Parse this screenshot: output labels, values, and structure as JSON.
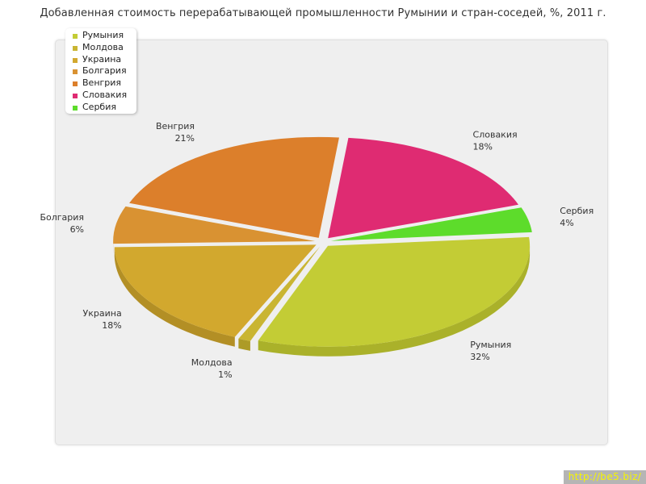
{
  "watermark": "http://be5.biz/",
  "chart_data": {
    "type": "pie",
    "title": "Добавленная стоимость перерабатывающей промышленности Румынии и стран-соседей, %, 2011 г.",
    "legend_position": "top-left",
    "slices": [
      {
        "name": "Румыния",
        "value": 32,
        "value_label": "32%",
        "color": "#c3cc35",
        "side": "#aab12a"
      },
      {
        "name": "Молдова",
        "value": 1,
        "value_label": "1%",
        "color": "#c9b532",
        "side": "#ad9b27"
      },
      {
        "name": "Украина",
        "value": 18,
        "value_label": "18%",
        "color": "#d2a82e",
        "side": "#b38f25"
      },
      {
        "name": "Болгария",
        "value": 6,
        "value_label": "6%",
        "color": "#d99232",
        "side": "#b97a28"
      },
      {
        "name": "Венгрия",
        "value": 21,
        "value_label": "21%",
        "color": "#dc7f2b",
        "side": "#bd6a22"
      },
      {
        "name": "Словакия",
        "value": 18,
        "value_label": "18%",
        "color": "#df2b72",
        "side": "#bc2460"
      },
      {
        "name": "Сербия",
        "value": 4,
        "value_label": "4%",
        "color": "#5ddc2b",
        "side": "#4cb924"
      }
    ]
  }
}
